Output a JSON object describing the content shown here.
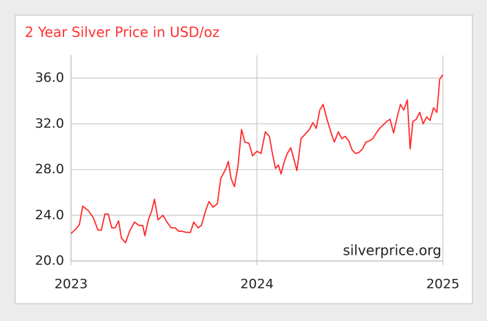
{
  "chart_data": {
    "type": "line",
    "title": "2 Year Silver Price in USD/oz",
    "annotation": "silverprice.org",
    "grid": true,
    "xlim": [
      2023,
      2025
    ],
    "xticks": [
      2023,
      2024,
      2025
    ],
    "ylim": [
      20,
      38
    ],
    "yticks": [
      {
        "value": 20,
        "label": "20.0"
      },
      {
        "value": 24,
        "label": "24.0"
      },
      {
        "value": 28,
        "label": "28.0"
      },
      {
        "value": 32,
        "label": "32.0"
      },
      {
        "value": 36,
        "label": "36.0"
      }
    ],
    "x": [
      2023.0,
      2023.026,
      2023.045,
      2023.063,
      2023.093,
      2023.119,
      2023.145,
      2023.163,
      2023.182,
      2023.2,
      2023.219,
      2023.237,
      2023.256,
      2023.271,
      2023.293,
      2023.315,
      2023.341,
      2023.367,
      2023.386,
      2023.397,
      2023.416,
      2023.434,
      2023.449,
      2023.468,
      2023.494,
      2023.516,
      2023.538,
      2023.56,
      2023.579,
      2023.597,
      2023.62,
      2023.642,
      2023.66,
      2023.683,
      2023.701,
      2023.724,
      2023.742,
      2023.764,
      2023.787,
      2023.805,
      2023.831,
      2023.846,
      2023.861,
      2023.879,
      2023.898,
      2023.917,
      2023.935,
      2023.957,
      2023.976,
      2024.0,
      2024.022,
      2024.045,
      2024.067,
      2024.082,
      2024.1,
      2024.115,
      2024.13,
      2024.145,
      2024.163,
      2024.182,
      2024.197,
      2024.215,
      2024.237,
      2024.26,
      2024.282,
      2024.301,
      2024.319,
      2024.338,
      2024.356,
      2024.375,
      2024.397,
      2024.416,
      2024.438,
      2024.456,
      2024.475,
      2024.494,
      2024.512,
      2024.531,
      2024.549,
      2024.568,
      2024.586,
      2024.605,
      2024.623,
      2024.642,
      2024.66,
      2024.679,
      2024.698,
      2024.716,
      2024.735,
      2024.753,
      2024.772,
      2024.79,
      2024.809,
      2024.824,
      2024.839,
      2024.857,
      2024.876,
      2024.894,
      2024.913,
      2024.931,
      2024.95,
      2024.968,
      2024.983,
      2025.0
    ],
    "series": [
      {
        "color": "#ff2a2a",
        "values": [
          22.4,
          22.8,
          23.2,
          24.8,
          24.4,
          23.8,
          22.7,
          22.7,
          24.1,
          24.1,
          22.9,
          22.9,
          23.5,
          22.0,
          21.6,
          22.6,
          23.4,
          23.1,
          23.1,
          22.2,
          23.6,
          24.4,
          25.4,
          23.6,
          24.0,
          23.4,
          22.9,
          22.9,
          22.6,
          22.6,
          22.5,
          22.5,
          23.4,
          22.9,
          23.1,
          24.4,
          25.2,
          24.7,
          25.0,
          27.2,
          28.0,
          28.7,
          27.2,
          26.5,
          28.3,
          31.5,
          30.4,
          30.3,
          29.2,
          29.6,
          29.4,
          31.3,
          30.9,
          29.5,
          28.1,
          28.4,
          27.6,
          28.6,
          29.4,
          29.9,
          29.0,
          27.9,
          30.7,
          31.1,
          31.5,
          32.1,
          31.6,
          33.2,
          33.7,
          32.5,
          31.3,
          30.4,
          31.3,
          30.7,
          30.9,
          30.5,
          29.7,
          29.4,
          29.5,
          29.8,
          30.4,
          30.5,
          30.7,
          31.2,
          31.6,
          31.9,
          32.2,
          32.4,
          31.2,
          32.5,
          33.7,
          33.2,
          34.1,
          29.8,
          32.2,
          32.4,
          33.0,
          32.0,
          32.6,
          32.3,
          33.4,
          33.0,
          35.9,
          36.3
        ]
      }
    ]
  }
}
